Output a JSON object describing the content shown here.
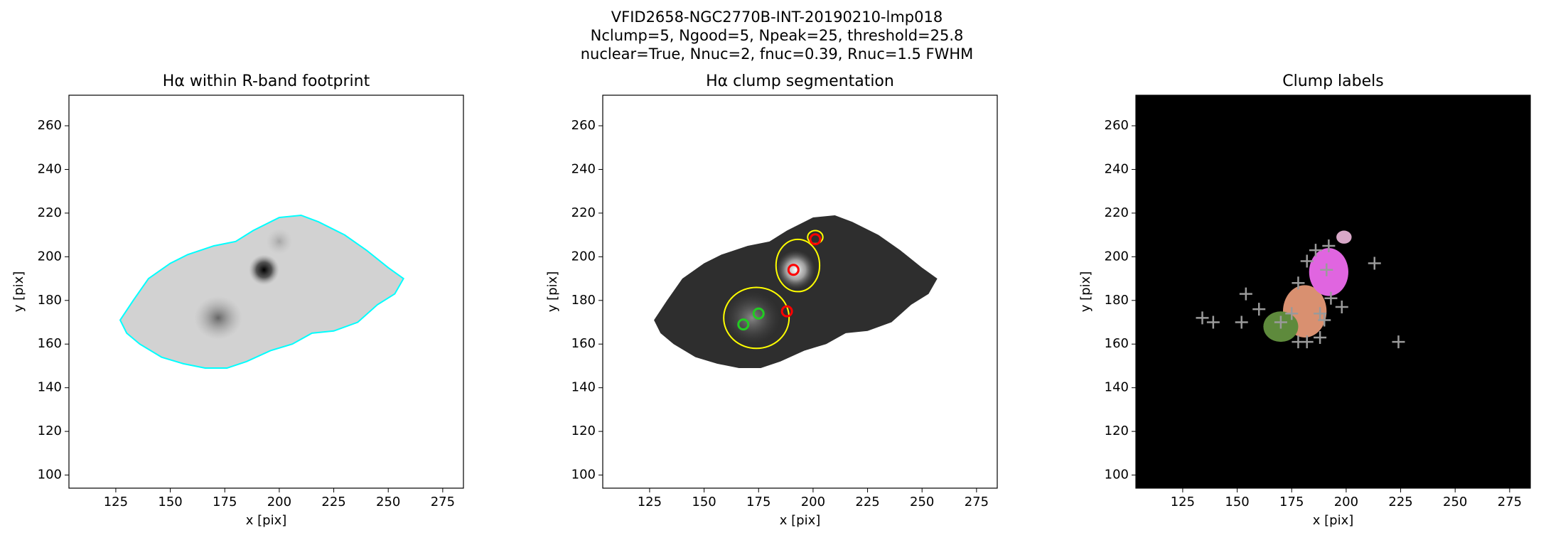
{
  "figure_title": [
    "VFID2658-NGC2770B-INT-20190210-lmp018",
    "Nclump=5, Ngood=5, Npeak=25, threshold=25.8",
    "nuclear=True, Nnuc=2, fnuc=0.39, Rnuc=1.5 FWHM"
  ],
  "chart_data": [
    {
      "type": "image",
      "title": "Hα within R-band footprint",
      "xlabel": "x [pix]",
      "ylabel": "y [pix]",
      "xlim": [
        103.5,
        284.5
      ],
      "ylim": [
        94,
        274
      ],
      "xticks": [
        125,
        150,
        175,
        200,
        225,
        250,
        275
      ],
      "yticks": [
        100,
        120,
        140,
        160,
        180,
        200,
        220,
        240,
        260
      ]
    },
    {
      "type": "image",
      "title": "Hα clump segmentation",
      "xlabel": "x [pix]",
      "ylabel": "y [pix]",
      "xlim": [
        103.5,
        284.5
      ],
      "ylim": [
        94,
        274
      ],
      "xticks": [
        125,
        150,
        175,
        200,
        225,
        250,
        275
      ],
      "yticks": [
        100,
        120,
        140,
        160,
        180,
        200,
        220,
        240,
        260
      ],
      "series": [
        {
          "color": "#22cc22",
          "x": [
            168,
            175
          ],
          "y": [
            169,
            174
          ]
        },
        {
          "color": "#ff0000",
          "x": [
            191,
            201,
            188
          ],
          "y": [
            194,
            208,
            175
          ]
        }
      ]
    },
    {
      "type": "image",
      "title": "Clump labels",
      "xlabel": "x [pix]",
      "ylabel": "y [pix]",
      "xlim": [
        103.5,
        284.5
      ],
      "ylim": [
        94,
        274
      ],
      "xticks": [
        125,
        150,
        175,
        200,
        225,
        250,
        275
      ],
      "yticks": [
        100,
        120,
        140,
        160,
        180,
        200,
        220,
        240,
        260
      ],
      "series": [
        {
          "color": "#9a9a9a",
          "x": [
            134,
            139,
            154,
            152,
            160,
            170,
            175,
            178,
            178,
            182,
            186,
            188,
            190,
            191,
            192,
            193,
            198,
            213,
            224,
            188,
            182
          ],
          "y": [
            172,
            170,
            183,
            170,
            176,
            170,
            174,
            188,
            161,
            198,
            203,
            174,
            171,
            194,
            205,
            181,
            177,
            197,
            161,
            163,
            161
          ]
        }
      ]
    }
  ]
}
